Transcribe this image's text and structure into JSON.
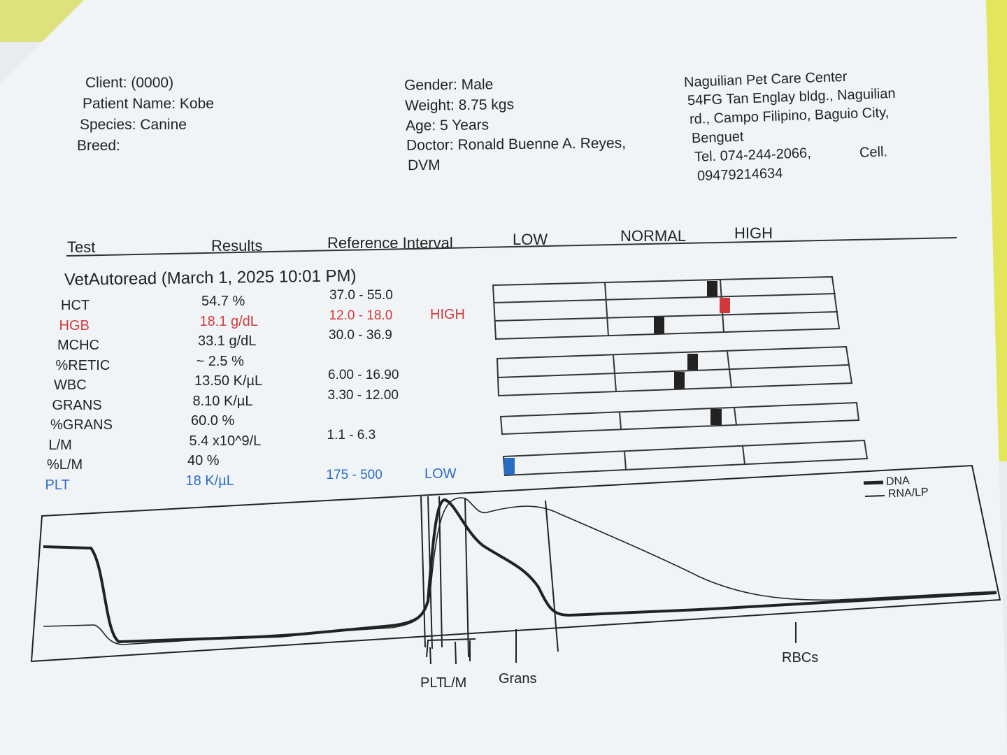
{
  "patient_info": [
    "Client:  (0000)",
    "Patient Name: Kobe",
    "Species: Canine",
    "Breed:"
  ],
  "visit_info": [
    "Gender: Male",
    "Weight: 8.75 kgs",
    "Age: 5 Years",
    "Doctor: Ronald Buenne A. Reyes,",
    "DVM"
  ],
  "clinic_info": [
    "Naguilian Pet Care Center",
    "54FG Tan Englay bldg., Naguilian",
    "rd., Campo Filipino, Baguio City,",
    "Benguet",
    "Tel. 074-244-2066,",
    "Cell.",
    "09479214634"
  ],
  "table": {
    "headers": [
      "Test",
      "Results",
      "Reference Interval",
      "LOW",
      "NORMAL",
      "HIGH"
    ],
    "section": "VetAutoread (March 1, 2025 10:01 PM)",
    "rows": [
      {
        "test": "HCT",
        "result": "54.7 %",
        "reference": "37.0 - 55.0"
      },
      {
        "test": "HGB",
        "result": "18.1 g/dL",
        "reference": "12.0 - 18.0",
        "flag": "HIGH",
        "color": "#d23a3a"
      },
      {
        "test": "MCHC",
        "result": "33.1 g/dL",
        "reference": "30.0 - 36.9"
      },
      {
        "test": "%RETIC",
        "result": "~ 2.5 %"
      },
      {
        "test": "WBC",
        "result": "13.50 K/µL",
        "reference": "6.00 - 16.90"
      },
      {
        "test": "GRANS",
        "result": "8.10 K/µL",
        "reference": "3.30 - 12.00"
      },
      {
        "test": "%GRANS",
        "result": "60.0 %"
      },
      {
        "test": "L/M",
        "result": "5.4 x10^9/L",
        "reference": "1.1 - 6.3"
      },
      {
        "test": "%L/M",
        "result": "40 %"
      },
      {
        "test": "PLT",
        "result": "18 K/µL",
        "reference": "175 - 500",
        "flag": "LOW",
        "color": "#2a6cc4"
      }
    ]
  },
  "histogram": {
    "legend": [
      "DNA",
      "RNA/LP"
    ],
    "labels": [
      "PLT",
      "L/M",
      "Grans",
      "RBCs"
    ]
  }
}
